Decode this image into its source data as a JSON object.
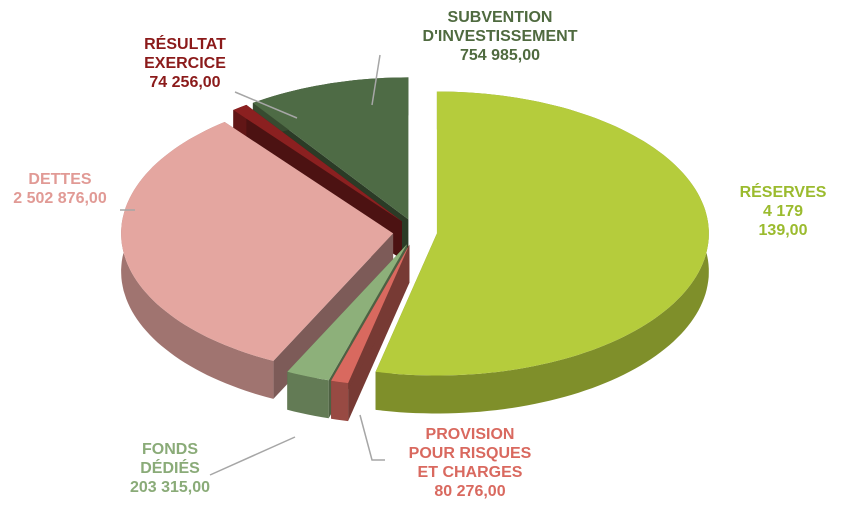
{
  "chart_data": {
    "type": "pie3d",
    "categories": [
      "RÉSERVES",
      "PROVISION\nPOUR RISQUES\nET CHARGES",
      "FONDS\nDÉDIÉS",
      "DETTES",
      "RÉSULTAT\nEXERCICE",
      "SUBVENTION\nD'INVESTISSEMENT"
    ],
    "values": [
      4179139,
      80276,
      203315,
      2502876,
      74256,
      754985
    ],
    "value_labels": [
      "4 179 139,00",
      "80 276,00",
      "203 315,00",
      "2 502 876,00",
      "74 256,00",
      "754 985,00"
    ],
    "colors": [
      "#b5cc3c",
      "#d9695f",
      "#8db07a",
      "#e4a6a0",
      "#8b2020",
      "#4e6b45"
    ],
    "label_colors": [
      "#9bbb2e",
      "#d9695f",
      "#8aab78",
      "#e19a95",
      "#8b1a1a",
      "#4f6a3f"
    ]
  }
}
